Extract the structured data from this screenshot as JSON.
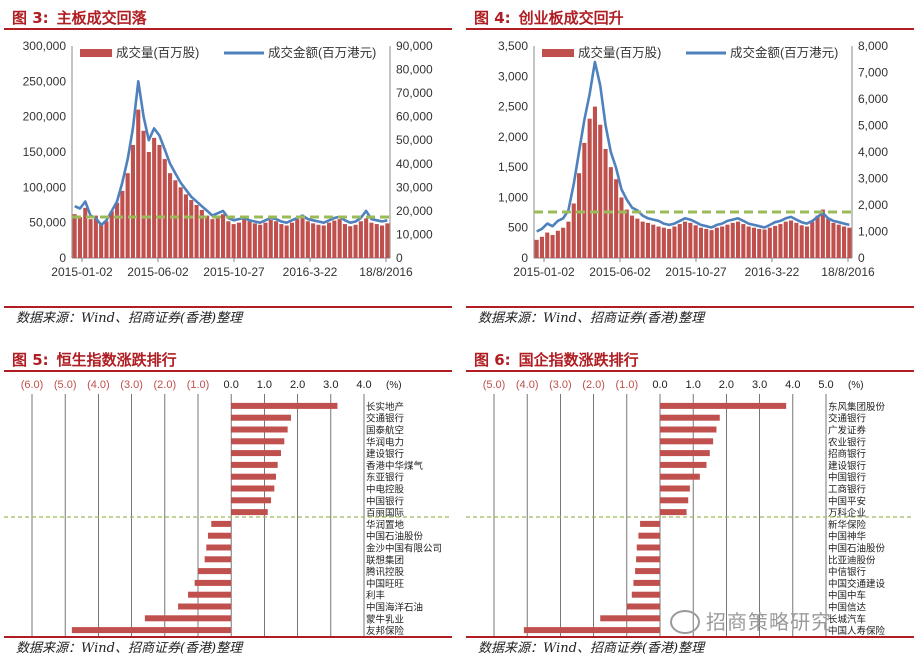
{
  "figures": [
    {
      "fig": "图 3:",
      "title": "主板成交回落",
      "source": "数据来源：Wind、招商证券(香港)整理"
    },
    {
      "fig": "图 4:",
      "title": "创业板成交回升",
      "source": "数据来源：Wind、招商证券(香港)整理"
    },
    {
      "fig": "图 5:",
      "title": "恒生指数涨跌排行",
      "source": "数据来源：Wind、招商证券(香港)整理"
    },
    {
      "fig": "图 6:",
      "title": "国企指数涨跌排行",
      "source": "数据来源：Wind、招商证券(香港)整理"
    }
  ],
  "watermark": "招商策略研究",
  "chart_data": [
    {
      "type": "bar",
      "series": [
        {
          "name": "成交量(百万股)",
          "axis": "left",
          "color": "#c0504d",
          "values": [
            62000,
            58000,
            71000,
            55000,
            60000,
            48000,
            52000,
            66000,
            78000,
            95000,
            120000,
            160000,
            210000,
            180000,
            150000,
            170000,
            160000,
            140000,
            120000,
            110000,
            100000,
            90000,
            82000,
            75000,
            68000,
            60000,
            55000,
            58000,
            62000,
            52000,
            48000,
            50000,
            55000,
            52000,
            49000,
            47000,
            50000,
            54000,
            52000,
            48000,
            46000,
            50000,
            55000,
            58000,
            52000,
            49000,
            47000,
            46000,
            50000,
            53000,
            55000,
            48000,
            45000,
            47000,
            52000,
            56000,
            50000,
            48000,
            46000,
            49000
          ]
        },
        {
          "name": "成交金额(百万港元)",
          "axis": "right",
          "color": "#4f81bd",
          "values": [
            22000,
            21000,
            24000,
            18000,
            17000,
            14000,
            16000,
            20000,
            24000,
            32000,
            42000,
            55000,
            75000,
            60000,
            50000,
            55000,
            52000,
            46000,
            40000,
            36000,
            32000,
            29000,
            26000,
            24000,
            22000,
            20000,
            18000,
            19000,
            20000,
            17000,
            16000,
            16500,
            17000,
            16000,
            15500,
            15000,
            16000,
            17000,
            16500,
            15500,
            15000,
            16000,
            17000,
            18000,
            16500,
            16000,
            15500,
            15000,
            16000,
            17000,
            17500,
            16000,
            15000,
            15500,
            17000,
            20000,
            16500,
            16000,
            15500,
            16000
          ]
        }
      ],
      "average_line": {
        "axis": "left",
        "value": 58000
      },
      "x_ticks": [
        "2015-01-02",
        "2015-06-02",
        "2015-10-27",
        "2016-3-22",
        "18/8/2016"
      ],
      "ylim_left": [
        0,
        300000
      ],
      "yticks_left": [
        "0",
        "50,000",
        "100,000",
        "150,000",
        "200,000",
        "250,000",
        "300,000"
      ],
      "ylim_right": [
        0,
        90000
      ],
      "yticks_right": [
        "0",
        "10,000",
        "20,000",
        "30,000",
        "40,000",
        "50,000",
        "60,000",
        "70,000",
        "80,000",
        "90,000"
      ]
    },
    {
      "type": "bar",
      "series": [
        {
          "name": "成交量(百万股)",
          "axis": "left",
          "color": "#c0504d",
          "values": [
            300,
            350,
            420,
            380,
            450,
            500,
            600,
            900,
            1400,
            1900,
            2300,
            2500,
            2200,
            1800,
            1500,
            1300,
            1000,
            800,
            700,
            650,
            600,
            580,
            550,
            520,
            500,
            480,
            520,
            560,
            600,
            580,
            540,
            500,
            480,
            460,
            500,
            520,
            550,
            580,
            600,
            560,
            520,
            500,
            480,
            470,
            500,
            530,
            560,
            600,
            620,
            580,
            540,
            520,
            600,
            700,
            800,
            650,
            580,
            550,
            520,
            500
          ]
        },
        {
          "name": "成交金额(百万港元)",
          "axis": "right",
          "color": "#4f81bd",
          "values": [
            1000,
            1100,
            1300,
            1200,
            1400,
            1500,
            1800,
            2800,
            4000,
            5200,
            6200,
            7400,
            6500,
            5000,
            4000,
            3400,
            2600,
            2200,
            1900,
            1800,
            1600,
            1500,
            1450,
            1400,
            1300,
            1250,
            1300,
            1400,
            1500,
            1450,
            1350,
            1250,
            1200,
            1150,
            1250,
            1300,
            1400,
            1450,
            1500,
            1400,
            1300,
            1250,
            1200,
            1150,
            1250,
            1350,
            1400,
            1500,
            1550,
            1450,
            1350,
            1300,
            1400,
            1550,
            1700,
            1500,
            1400,
            1350,
            1300,
            1250
          ]
        }
      ],
      "average_line": {
        "axis": "left",
        "value": 760
      },
      "x_ticks": [
        "2015-01-02",
        "2015-06-02",
        "2015-10-27",
        "2016-3-22",
        "18/8/2016"
      ],
      "ylim_left": [
        0,
        3500
      ],
      "yticks_left": [
        "0",
        "500",
        "1,000",
        "1,500",
        "2,000",
        "2,500",
        "3,000",
        "3,500"
      ],
      "ylim_right": [
        0,
        8000
      ],
      "yticks_right": [
        "0",
        "1,000",
        "2,000",
        "3,000",
        "4,000",
        "5,000",
        "6,000",
        "7,000",
        "8,000"
      ]
    },
    {
      "type": "bar",
      "orientation": "horizontal",
      "unit": "(%)",
      "xlim": [
        -6,
        4
      ],
      "x_ticks": [
        "(6.0)",
        "(5.0)",
        "(4.0)",
        "(3.0)",
        "(2.0)",
        "(1.0)",
        "0.0",
        "1.0",
        "2.0",
        "3.0",
        "4.0"
      ],
      "categories": [
        "长实地产",
        "交通银行",
        "国泰航空",
        "华润电力",
        "建设银行",
        "香港中华煤气",
        "东亚银行",
        "中电控股",
        "中国银行",
        "百丽国际",
        "华润置地",
        "中国石油股份",
        "金沙中国有限公司",
        "联想集团",
        "腾讯控股",
        "中国旺旺",
        "利丰",
        "中国海洋石油",
        "蒙牛乳业",
        "友邦保险"
      ],
      "values": [
        3.2,
        1.8,
        1.7,
        1.6,
        1.5,
        1.4,
        1.35,
        1.3,
        1.2,
        1.1,
        -0.6,
        -0.7,
        -0.75,
        -0.8,
        -1.0,
        -1.1,
        -1.3,
        -1.6,
        -2.6,
        -4.8
      ]
    },
    {
      "type": "bar",
      "orientation": "horizontal",
      "unit": "(%)",
      "xlim": [
        -5,
        5
      ],
      "x_ticks": [
        "(5.0)",
        "(4.0)",
        "(3.0)",
        "(2.0)",
        "(1.0)",
        "0.0",
        "1.0",
        "2.0",
        "3.0",
        "4.0",
        "5.0"
      ],
      "categories": [
        "东风集团股份",
        "交通银行",
        "广发证券",
        "农业银行",
        "招商银行",
        "建设银行",
        "中国银行",
        "工商银行",
        "中国平安",
        "万科企业",
        "新华保险",
        "中国神华",
        "中国石油股份",
        "比亚迪股份",
        "中信银行",
        "中国交通建设",
        "中国中车",
        "中国信达",
        "长城汽车",
        "中国人寿保险"
      ],
      "values": [
        3.8,
        1.8,
        1.7,
        1.6,
        1.5,
        1.4,
        1.2,
        0.9,
        0.85,
        0.8,
        -0.6,
        -0.65,
        -0.7,
        -0.72,
        -0.75,
        -0.8,
        -0.85,
        -1.0,
        -1.8,
        -4.1
      ]
    }
  ]
}
